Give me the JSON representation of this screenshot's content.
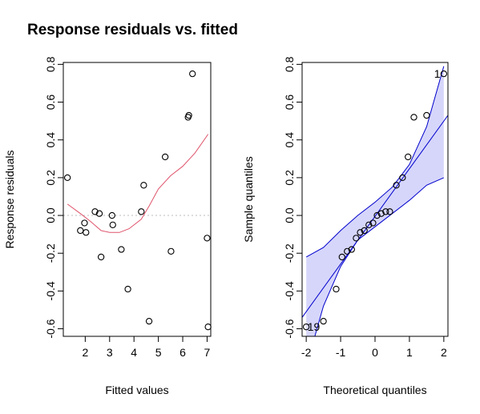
{
  "title": "Response residuals vs. fitted",
  "chart_data": [
    {
      "type": "scatter",
      "title": "Response residuals vs. fitted",
      "xlabel": "Fitted values",
      "ylabel": "Response residuals",
      "xlim": [
        1.1,
        7.15
      ],
      "ylim": [
        -0.64,
        0.81
      ],
      "xticks": [
        2,
        3,
        4,
        5,
        6,
        7
      ],
      "yticks": [
        -0.6,
        -0.4,
        -0.2,
        0.0,
        0.2,
        0.4,
        0.6,
        0.8
      ],
      "ytick_labels": [
        "-0.6",
        "-0.4",
        "-0.2",
        "0.0",
        "0.2",
        "0.4",
        "0.6",
        "0.8"
      ],
      "reference_line_y": 0,
      "reference_line_color": "#bdbdbd",
      "point_color": "#000000",
      "smooth_color": "#df536b",
      "points": [
        {
          "x": 1.27,
          "y": 0.2
        },
        {
          "x": 1.8,
          "y": -0.08
        },
        {
          "x": 1.97,
          "y": -0.04
        },
        {
          "x": 2.03,
          "y": -0.09
        },
        {
          "x": 2.4,
          "y": 0.02
        },
        {
          "x": 2.58,
          "y": 0.01
        },
        {
          "x": 2.65,
          "y": -0.22
        },
        {
          "x": 3.1,
          "y": 0.0
        },
        {
          "x": 3.13,
          "y": -0.05
        },
        {
          "x": 3.48,
          "y": -0.18
        },
        {
          "x": 3.75,
          "y": -0.39
        },
        {
          "x": 4.3,
          "y": 0.02
        },
        {
          "x": 4.4,
          "y": 0.16
        },
        {
          "x": 4.62,
          "y": -0.56
        },
        {
          "x": 5.28,
          "y": 0.31
        },
        {
          "x": 5.52,
          "y": -0.19
        },
        {
          "x": 6.22,
          "y": 0.52
        },
        {
          "x": 6.25,
          "y": 0.53
        },
        {
          "x": 6.4,
          "y": 0.75
        },
        {
          "x": 7.0,
          "y": -0.12
        },
        {
          "x": 7.04,
          "y": -0.59
        }
      ],
      "smooth": [
        {
          "x": 1.27,
          "y": 0.06
        },
        {
          "x": 1.8,
          "y": 0.01
        },
        {
          "x": 2.2,
          "y": -0.03
        },
        {
          "x": 2.65,
          "y": -0.08
        },
        {
          "x": 3.0,
          "y": -0.09
        },
        {
          "x": 3.4,
          "y": -0.09
        },
        {
          "x": 3.8,
          "y": -0.07
        },
        {
          "x": 4.3,
          "y": -0.02
        },
        {
          "x": 4.62,
          "y": 0.05
        },
        {
          "x": 5.0,
          "y": 0.14
        },
        {
          "x": 5.5,
          "y": 0.21
        },
        {
          "x": 6.0,
          "y": 0.26
        },
        {
          "x": 6.5,
          "y": 0.33
        },
        {
          "x": 7.04,
          "y": 0.43
        }
      ]
    },
    {
      "type": "scatter",
      "xlabel": "Theoretical quantiles",
      "ylabel": "Sample quantiles",
      "xlim": [
        -2.12,
        2.12
      ],
      "ylim": [
        -0.64,
        0.81
      ],
      "xticks": [
        -2,
        -1,
        0,
        1,
        2
      ],
      "yticks": [
        -0.6,
        -0.4,
        -0.2,
        0.0,
        0.2,
        0.4,
        0.6,
        0.8
      ],
      "ytick_labels": [
        "-0.6",
        "-0.4",
        "-0.2",
        "0.0",
        "0.2",
        "0.4",
        "0.6",
        "0.8"
      ],
      "line_color": "#0000cc",
      "band_fill": "#d6d6fb",
      "point_color": "#000000",
      "labels": [
        {
          "text": "1",
          "x": 1.9,
          "y": 0.75
        },
        {
          "text": "19",
          "x": -1.6,
          "y": -0.59
        }
      ],
      "points": [
        {
          "x": -2.0,
          "y": -0.59
        },
        {
          "x": -1.5,
          "y": -0.56
        },
        {
          "x": -1.13,
          "y": -0.39
        },
        {
          "x": -0.96,
          "y": -0.22
        },
        {
          "x": -0.81,
          "y": -0.19
        },
        {
          "x": -0.68,
          "y": -0.18
        },
        {
          "x": -0.55,
          "y": -0.12
        },
        {
          "x": -0.43,
          "y": -0.09
        },
        {
          "x": -0.31,
          "y": -0.08
        },
        {
          "x": -0.18,
          "y": -0.05
        },
        {
          "x": -0.06,
          "y": -0.04
        },
        {
          "x": 0.06,
          "y": 0.0
        },
        {
          "x": 0.18,
          "y": 0.01
        },
        {
          "x": 0.31,
          "y": 0.02
        },
        {
          "x": 0.43,
          "y": 0.02
        },
        {
          "x": 0.62,
          "y": 0.16
        },
        {
          "x": 0.8,
          "y": 0.2
        },
        {
          "x": 0.96,
          "y": 0.31
        },
        {
          "x": 1.13,
          "y": 0.52
        },
        {
          "x": 1.5,
          "y": 0.53
        },
        {
          "x": 2.0,
          "y": 0.75
        }
      ],
      "reference_line": [
        {
          "x": -2.12,
          "y": -0.54
        },
        {
          "x": 2.12,
          "y": 0.53
        }
      ],
      "band_upper": [
        {
          "x": -2.0,
          "y": -0.22
        },
        {
          "x": -1.5,
          "y": -0.17
        },
        {
          "x": -1.0,
          "y": -0.08
        },
        {
          "x": -0.5,
          "y": 0.0
        },
        {
          "x": 0.0,
          "y": 0.07
        },
        {
          "x": 0.5,
          "y": 0.15
        },
        {
          "x": 1.0,
          "y": 0.27
        },
        {
          "x": 1.5,
          "y": 0.47
        },
        {
          "x": 2.0,
          "y": 0.79
        }
      ],
      "band_lower": [
        {
          "x": -2.0,
          "y": -0.8
        },
        {
          "x": -1.5,
          "y": -0.48
        },
        {
          "x": -1.0,
          "y": -0.27
        },
        {
          "x": -0.5,
          "y": -0.13
        },
        {
          "x": 0.0,
          "y": -0.06
        },
        {
          "x": 0.5,
          "y": 0.01
        },
        {
          "x": 1.0,
          "y": 0.08
        },
        {
          "x": 1.5,
          "y": 0.16
        },
        {
          "x": 2.0,
          "y": 0.2
        }
      ]
    }
  ]
}
